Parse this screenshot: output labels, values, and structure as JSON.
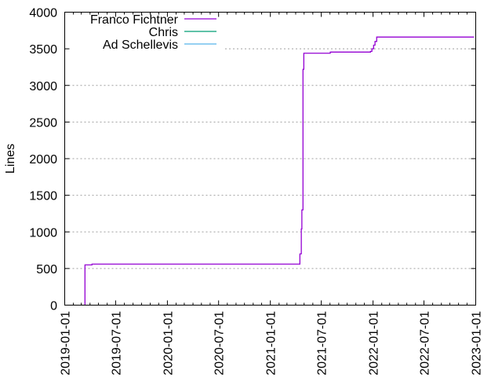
{
  "chart_data": {
    "type": "line",
    "title": "",
    "xlabel": "",
    "ylabel": "Lines",
    "xlim": [
      "2019-01-01",
      "2023-01-01"
    ],
    "ylim": [
      0,
      4000
    ],
    "grid": "horizontal dotted",
    "legend_placement": "top-left",
    "x_ticks": [
      "2019-01-01",
      "2019-07-01",
      "2020-01-01",
      "2020-07-01",
      "2021-01-01",
      "2021-07-01",
      "2022-01-01",
      "2022-07-01",
      "2023-01-01"
    ],
    "y_ticks": [
      0,
      500,
      1000,
      1500,
      2000,
      2500,
      3000,
      3500,
      4000
    ],
    "series": [
      {
        "name": "Franco Fichtner",
        "color": "#9400d3",
        "step": true,
        "points": [
          [
            "2019-03-14",
            0
          ],
          [
            "2019-03-14",
            550
          ],
          [
            "2019-04-08",
            560
          ],
          [
            "2021-04-16",
            560
          ],
          [
            "2021-04-16",
            700
          ],
          [
            "2021-04-21",
            1040
          ],
          [
            "2021-04-23",
            1300
          ],
          [
            "2021-04-27",
            3220
          ],
          [
            "2021-04-30",
            3440
          ],
          [
            "2021-08-02",
            3455
          ],
          [
            "2021-12-23",
            3465
          ],
          [
            "2021-12-28",
            3500
          ],
          [
            "2022-01-03",
            3550
          ],
          [
            "2022-01-08",
            3600
          ],
          [
            "2022-01-14",
            3660
          ],
          [
            "2022-12-26",
            3660
          ]
        ]
      },
      {
        "name": "Chris",
        "color": "#009e73",
        "points": []
      },
      {
        "name": "Ad Schellevis",
        "color": "#56b4e9",
        "points": []
      }
    ]
  }
}
